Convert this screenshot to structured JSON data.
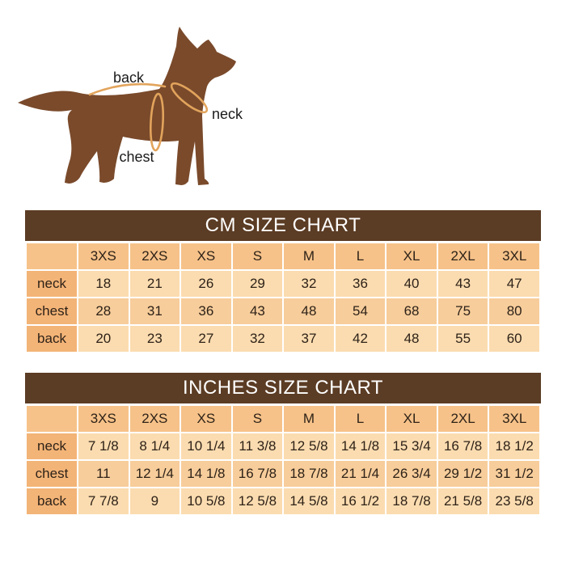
{
  "diagram": {
    "labels": {
      "back": "back",
      "neck": "neck",
      "chest": "chest"
    }
  },
  "tables": [
    {
      "id": "cm",
      "title": "CM SIZE CHART",
      "columns": [
        "",
        "3XS",
        "2XS",
        "XS",
        "S",
        "M",
        "L",
        "XL",
        "2XL",
        "3XL"
      ],
      "rows": [
        {
          "label": "neck",
          "values": [
            "18",
            "21",
            "26",
            "29",
            "32",
            "36",
            "40",
            "43",
            "47"
          ]
        },
        {
          "label": "chest",
          "values": [
            "28",
            "31",
            "36",
            "43",
            "48",
            "54",
            "68",
            "75",
            "80"
          ]
        },
        {
          "label": "back",
          "values": [
            "20",
            "23",
            "27",
            "32",
            "37",
            "42",
            "48",
            "55",
            "60"
          ]
        }
      ]
    },
    {
      "id": "inches",
      "title": "INCHES SIZE CHART",
      "columns": [
        "",
        "3XS",
        "2XS",
        "XS",
        "S",
        "M",
        "L",
        "XL",
        "2XL",
        "3XL"
      ],
      "rows": [
        {
          "label": "neck",
          "values": [
            "7 1/8",
            "8 1/4",
            "10 1/4",
            "11 3/8",
            "12 5/8",
            "14 1/8",
            "15 3/4",
            "16 7/8",
            "18 1/2"
          ]
        },
        {
          "label": "chest",
          "values": [
            "11",
            "12 1/4",
            "14 1/8",
            "16 7/8",
            "18 7/8",
            "21 1/4",
            "26 3/4",
            "29 1/2",
            "31 1/2"
          ]
        },
        {
          "label": "back",
          "values": [
            "7 7/8",
            "9",
            "10 5/8",
            "12 5/8",
            "14 5/8",
            "16 1/2",
            "18 7/8",
            "21 5/8",
            "23 5/8"
          ]
        }
      ]
    }
  ],
  "colors": {
    "title_bar": "#5b3c24",
    "title_text": "#ffffff",
    "header_cell": "#f6c289",
    "label_cell": "#f3b477",
    "row_light": "#fbdcb0",
    "row_medium": "#f7cd9b",
    "cell_text": "#2e2218",
    "dog_body": "#7a4a2b",
    "measure_line": "#e2a45c"
  }
}
